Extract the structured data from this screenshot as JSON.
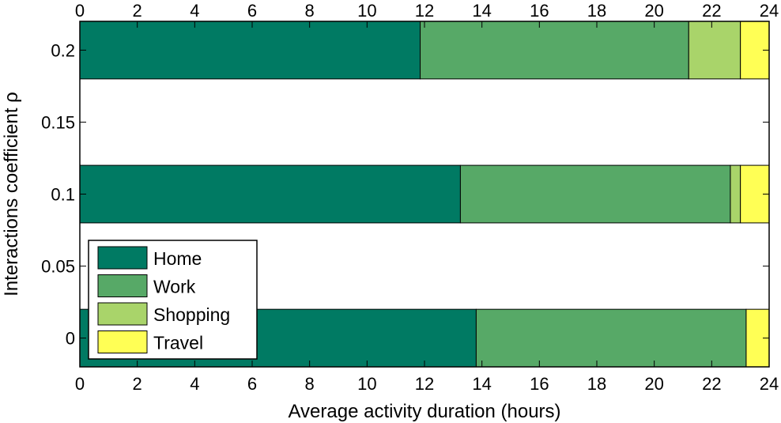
{
  "chart_data": {
    "type": "bar",
    "orientation": "horizontal",
    "stacked": true,
    "xlabel": "Average activity duration (hours)",
    "ylabel": "Interactions coefficient  ρ",
    "xlim": [
      0,
      24
    ],
    "ylim": [
      -0.02,
      0.22
    ],
    "x_ticks": [
      "0",
      "2",
      "4",
      "6",
      "8",
      "10",
      "12",
      "14",
      "16",
      "18",
      "20",
      "22",
      "24"
    ],
    "y_ticks": [
      "0",
      "0.05",
      "0.1",
      "0.15",
      "0.2"
    ],
    "bar_width": 0.04,
    "legend_position": "bottom-left",
    "grid": false,
    "categories": [
      0.2,
      0.1,
      0
    ],
    "series": [
      {
        "name": "Home",
        "color": "#007A63",
        "values": [
          11.85,
          13.25,
          13.8
        ]
      },
      {
        "name": "Work",
        "color": "#57A967",
        "values": [
          9.35,
          9.4,
          9.4
        ]
      },
      {
        "name": "Shopping",
        "color": "#A9D46A",
        "values": [
          1.8,
          0.35,
          0.0
        ]
      },
      {
        "name": "Travel",
        "color": "#FFFF55",
        "values": [
          1.0,
          1.0,
          0.8
        ]
      }
    ]
  }
}
